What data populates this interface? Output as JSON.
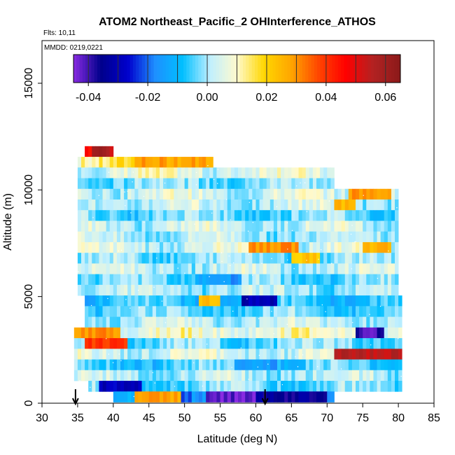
{
  "chart_data": {
    "type": "heatmap",
    "title": "ATOM2 Northeast_Pacific_2 OHInterference_ATHOS",
    "flights_label": "Flts: 10,11",
    "mmdd_label": "MMDD: 0219,0221",
    "xlabel": "Latitude (deg N)",
    "ylabel": "Altitude (m)",
    "xlim": [
      30,
      85
    ],
    "ylim": [
      0,
      17000
    ],
    "x_ticks": [
      "30",
      "35",
      "40",
      "45",
      "50",
      "55",
      "60",
      "65",
      "70",
      "75",
      "80",
      "85"
    ],
    "y_ticks": [
      "0",
      "5000",
      "10000",
      "15000"
    ],
    "colorbar": {
      "range": [
        -0.045,
        0.065
      ],
      "ticks": [
        "-0.04",
        "-0.02",
        "0.00",
        "0.02",
        "0.04",
        "0.06"
      ],
      "colors": [
        "#8a2be2",
        "#00008b",
        "#0000cd",
        "#1e90ff",
        "#00bfff",
        "#bfefff",
        "#fffacd",
        "#ffd700",
        "#ffa500",
        "#ff4500",
        "#ff0000",
        "#b22222",
        "#8b1a1a"
      ]
    },
    "flight_bottom_markers_lat": [
      34.7,
      61.3
    ],
    "altitude_bands": [
      {
        "alt": 11800,
        "lat_min": 36.0,
        "lat_max": 40.0,
        "base": 0.05
      },
      {
        "alt": 11300,
        "lat_min": 35.0,
        "lat_max": 54.0,
        "base": 0.015
      },
      {
        "alt": 10800,
        "lat_min": 35.0,
        "lat_max": 71.0,
        "base": 0.006
      },
      {
        "alt": 10300,
        "lat_min": 35.0,
        "lat_max": 71.0,
        "base": -0.002
      },
      {
        "alt": 9800,
        "lat_min": 35.0,
        "lat_max": 80.0,
        "base": 0.004
      },
      {
        "alt": 9300,
        "lat_min": 35.0,
        "lat_max": 80.0,
        "base": 0.002
      },
      {
        "alt": 8800,
        "lat_min": 35.0,
        "lat_max": 80.0,
        "base": -0.003
      },
      {
        "alt": 8300,
        "lat_min": 35.0,
        "lat_max": 80.0,
        "base": 0.003
      },
      {
        "alt": 7800,
        "lat_min": 35.0,
        "lat_max": 80.0,
        "base": 0.001
      },
      {
        "alt": 7300,
        "lat_min": 35.0,
        "lat_max": 80.0,
        "base": 0.004
      },
      {
        "alt": 6800,
        "lat_min": 35.0,
        "lat_max": 80.0,
        "base": -0.002
      },
      {
        "alt": 6300,
        "lat_min": 35.0,
        "lat_max": 80.0,
        "base": 0.002
      },
      {
        "alt": 5800,
        "lat_min": 35.0,
        "lat_max": 80.0,
        "base": -0.004
      },
      {
        "alt": 5300,
        "lat_min": 35.0,
        "lat_max": 80.0,
        "base": 0.0
      },
      {
        "alt": 4800,
        "lat_min": 36.0,
        "lat_max": 80.5,
        "base": -0.008
      },
      {
        "alt": 4300,
        "lat_min": 36.0,
        "lat_max": 80.5,
        "base": -0.004
      },
      {
        "alt": 3800,
        "lat_min": 36.0,
        "lat_max": 80.5,
        "base": 0.002
      },
      {
        "alt": 3300,
        "lat_min": 34.5,
        "lat_max": 80.5,
        "base": 0.008
      },
      {
        "alt": 2800,
        "lat_min": 34.5,
        "lat_max": 80.5,
        "base": -0.003
      },
      {
        "alt": 2300,
        "lat_min": 34.5,
        "lat_max": 80.5,
        "base": 0.004
      },
      {
        "alt": 1800,
        "lat_min": 34.5,
        "lat_max": 80.5,
        "base": -0.006
      },
      {
        "alt": 1300,
        "lat_min": 34.5,
        "lat_max": 80.5,
        "base": 0.001
      },
      {
        "alt": 800,
        "lat_min": 36.5,
        "lat_max": 80.5,
        "base": -0.003
      },
      {
        "alt": 300,
        "lat_min": 40.0,
        "lat_max": 71.0,
        "base": -0.015
      }
    ],
    "hotspots": [
      {
        "alt": 11800,
        "lat_min": 37.0,
        "lat_max": 39.5,
        "value": 0.06
      },
      {
        "alt": 11300,
        "lat_min": 43.0,
        "lat_max": 54.0,
        "value": 0.028
      },
      {
        "alt": 9800,
        "lat_min": 73.0,
        "lat_max": 79.0,
        "value": 0.03
      },
      {
        "alt": 9300,
        "lat_min": 71.0,
        "lat_max": 74.0,
        "value": 0.025
      },
      {
        "alt": 7300,
        "lat_min": 59.0,
        "lat_max": 66.0,
        "value": 0.03
      },
      {
        "alt": 7300,
        "lat_min": 75.0,
        "lat_max": 79.0,
        "value": 0.025
      },
      {
        "alt": 6800,
        "lat_min": 65.0,
        "lat_max": 69.0,
        "value": 0.022
      },
      {
        "alt": 5800,
        "lat_min": 52.0,
        "lat_max": 58.0,
        "value": -0.015
      },
      {
        "alt": 4800,
        "lat_min": 58.0,
        "lat_max": 63.0,
        "value": -0.03
      },
      {
        "alt": 4800,
        "lat_min": 52.0,
        "lat_max": 55.0,
        "value": 0.025
      },
      {
        "alt": 3300,
        "lat_min": 74.0,
        "lat_max": 78.0,
        "value": -0.04
      },
      {
        "alt": 3300,
        "lat_min": 34.5,
        "lat_max": 41.0,
        "value": 0.03
      },
      {
        "alt": 2800,
        "lat_min": 36.0,
        "lat_max": 42.0,
        "value": 0.04
      },
      {
        "alt": 2300,
        "lat_min": 71.0,
        "lat_max": 80.5,
        "value": 0.055
      },
      {
        "alt": 1800,
        "lat_min": 57.0,
        "lat_max": 63.0,
        "value": -0.015
      },
      {
        "alt": 800,
        "lat_min": 38.0,
        "lat_max": 44.0,
        "value": -0.03
      },
      {
        "alt": 300,
        "lat_min": 43.0,
        "lat_max": 49.5,
        "value": 0.028
      },
      {
        "alt": 300,
        "lat_min": 53.0,
        "lat_max": 60.0,
        "value": -0.042
      },
      {
        "alt": 300,
        "lat_min": 60.0,
        "lat_max": 70.0,
        "value": -0.035
      }
    ]
  }
}
